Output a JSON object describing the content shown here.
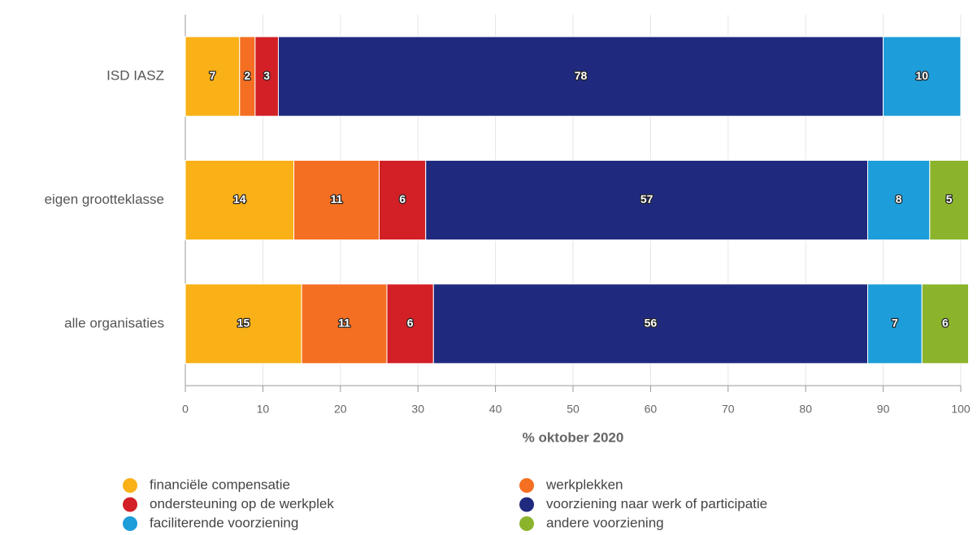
{
  "chart_data": {
    "type": "bar",
    "orientation": "horizontal",
    "stacked": true,
    "categories": [
      "ISD IASZ",
      "eigen grootteklasse",
      "alle organisaties"
    ],
    "series": [
      {
        "name": "financiële compensatie",
        "color": "#f9b117",
        "values": [
          7,
          14,
          15
        ]
      },
      {
        "name": "werkplekken",
        "color": "#f46f22",
        "values": [
          2,
          11,
          11
        ]
      },
      {
        "name": "ondersteuning op de werkplek",
        "color": "#d31f26",
        "values": [
          3,
          6,
          6
        ]
      },
      {
        "name": "voorziening naar werk of participatie",
        "color": "#1f2a7f",
        "values": [
          78,
          57,
          56
        ]
      },
      {
        "name": "faciliterende voorziening",
        "color": "#1d9dd9",
        "values": [
          10,
          8,
          7
        ]
      },
      {
        "name": "andere voorziening",
        "color": "#8bb42c",
        "values": [
          null,
          5,
          6
        ]
      }
    ],
    "xlabel": "% oktober 2020",
    "xlim": [
      0,
      100
    ],
    "xticks": [
      0,
      10,
      20,
      30,
      40,
      50,
      60,
      70,
      80,
      90,
      100
    ],
    "grid": true,
    "legend": "bottom"
  }
}
